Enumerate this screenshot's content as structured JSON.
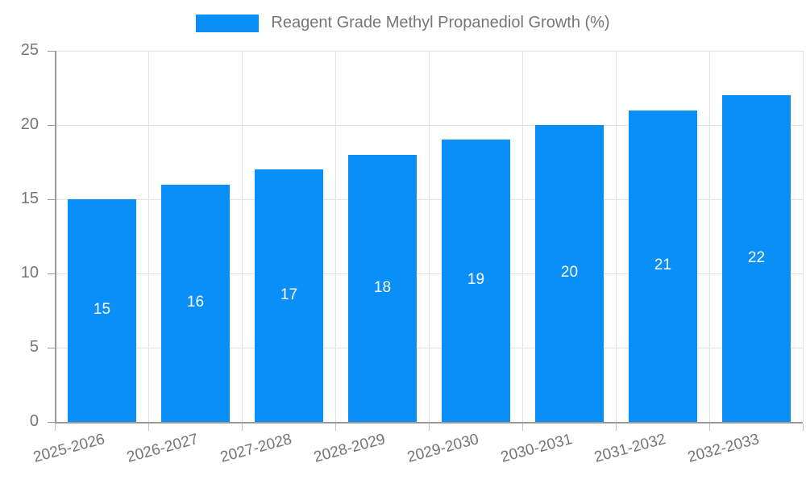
{
  "chart_data": {
    "type": "bar",
    "title": "Reagent Grade Methyl Propanediol Growth (%)",
    "categories": [
      "2025-2026",
      "2026-2027",
      "2027-2028",
      "2028-2029",
      "2029-2030",
      "2030-2031",
      "2031-2032",
      "2032-2033"
    ],
    "values": [
      15,
      16,
      17,
      18,
      19,
      20,
      21,
      22
    ],
    "xlabel": "",
    "ylabel": "",
    "ylim": [
      0,
      25
    ],
    "yticks": [
      0,
      5,
      10,
      15,
      20,
      25
    ],
    "grid": true,
    "legend_position": "top-center",
    "bar_label_position": "inside-middle",
    "x_label_rotation_deg": -15,
    "colors": {
      "bar": "#0a8ff9",
      "bar_label": "#ffffff",
      "axis_text": "#757575",
      "gridline": "#e3e3e3",
      "axis_line": "#9a9a9a",
      "background": "#ffffff"
    }
  }
}
